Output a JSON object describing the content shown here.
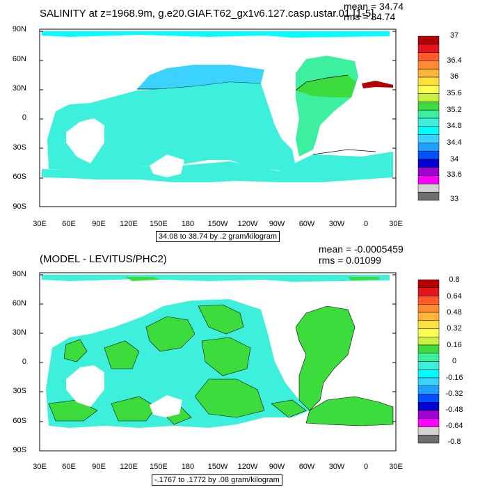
{
  "panel1": {
    "title": "SALINITY at z=1968.9m, g.e20.GIAF.T62_gx1v6.127.casp.ustar.01 [1-5]",
    "mean": "mean = 34.74",
    "rms": "rms = 34.74",
    "range": "34.08 to 38.74 by .2 gram/kilogram",
    "lat_labels": [
      "90N",
      "60N",
      "30N",
      "0",
      "30S",
      "60S",
      "90S"
    ],
    "lon_labels": [
      "30E",
      "60E",
      "90E",
      "120E",
      "150E",
      "180",
      "150W",
      "120W",
      "90W",
      "60W",
      "30W",
      "0",
      "30E"
    ],
    "colorbar_labels": [
      "37",
      "36.4",
      "36",
      "35.6",
      "35.2",
      "34.8",
      "34.4",
      "34",
      "33.6",
      "33"
    ],
    "colorbar_colors": [
      "#b40000",
      "#e6141e",
      "#ff5a28",
      "#ff8c32",
      "#ffb43c",
      "#ffe13c",
      "#ffff50",
      "#c8f03c",
      "#3cdc3c",
      "#3cf0a0",
      "#3cf0dc",
      "#00ffff",
      "#3cd2ff",
      "#1ea0ff",
      "#0050ff",
      "#0000d2",
      "#a000d2",
      "#ff00ff",
      "#d2d2d2",
      "#6e6e6e"
    ]
  },
  "panel2": {
    "title": "(MODEL - LEVITUS/PHC2)",
    "mean": "mean = -0.0005459",
    "rms": "rms = 0.01099",
    "range": "-.1767 to .1772 by .08 gram/kilogram",
    "lat_labels": [
      "90N",
      "60N",
      "30N",
      "0",
      "30S",
      "60S",
      "90S"
    ],
    "lon_labels": [
      "30E",
      "60E",
      "90E",
      "120E",
      "150E",
      "180",
      "150W",
      "120W",
      "90W",
      "60W",
      "30W",
      "0",
      "30E"
    ],
    "colorbar_labels": [
      "0.8",
      "0.64",
      "0.48",
      "0.32",
      "0.16",
      "0",
      "-0.16",
      "-0.32",
      "-0.48",
      "-0.64",
      "-0.8"
    ],
    "colorbar_colors": [
      "#b40000",
      "#e6141e",
      "#ff5a28",
      "#ff8c32",
      "#ffb43c",
      "#ffe13c",
      "#ffff50",
      "#c8f03c",
      "#3cdc3c",
      "#3cf0a0",
      "#3cf0dc",
      "#00ffff",
      "#3cd2ff",
      "#1ea0ff",
      "#0050ff",
      "#0000d2",
      "#a000d2",
      "#ff00ff",
      "#d2d2d2",
      "#6e6e6e"
    ]
  }
}
